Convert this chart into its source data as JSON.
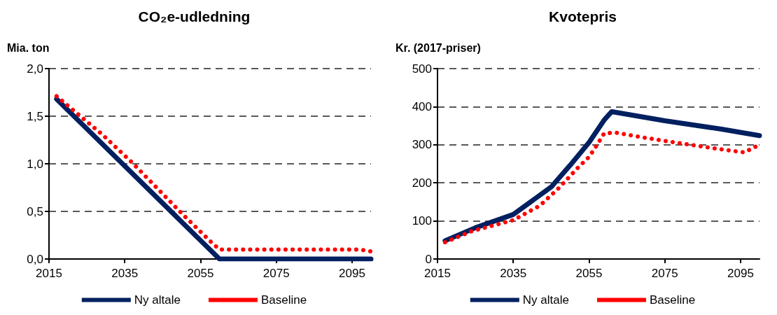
{
  "chart_data": [
    {
      "type": "line",
      "title": "CO₂e-udledning",
      "ylabel": "Mia. ton",
      "xlim": [
        2015,
        2100
      ],
      "xticks": [
        2015,
        2035,
        2055,
        2075,
        2095
      ],
      "ylim": [
        0,
        2
      ],
      "yticks": [
        {
          "value": 0,
          "label": "0,0"
        },
        {
          "value": 0.5,
          "label": "0,5"
        },
        {
          "value": 1,
          "label": "1,0"
        },
        {
          "value": 1.5,
          "label": "1,5"
        },
        {
          "value": 2,
          "label": "2,0"
        }
      ],
      "grid": "y",
      "legend": "bottom",
      "marker": "none",
      "series": [
        {
          "name": "Ny altale",
          "color": "#002060",
          "line_style": "solid",
          "x": [
            2017,
            2060,
            2100
          ],
          "values": [
            1.68,
            0,
            0
          ]
        },
        {
          "name": "Baseline",
          "color": "#ff0000",
          "line_style": "dotted",
          "x": [
            2017,
            2029,
            2037,
            2050,
            2058,
            2060,
            2097,
            2100
          ],
          "values": [
            1.71,
            1.31,
            1.01,
            0.48,
            0.17,
            0.1,
            0.1,
            0.08
          ]
        }
      ]
    },
    {
      "type": "line",
      "title": "Kvotepris",
      "ylabel": "Kr. (2017-priser)",
      "xlim": [
        2015,
        2100
      ],
      "xticks": [
        2015,
        2035,
        2055,
        2075,
        2095
      ],
      "ylim": [
        0,
        500
      ],
      "yticks": [
        0,
        100,
        200,
        300,
        400,
        500
      ],
      "grid": "y",
      "legend": "bottom",
      "marker": "none",
      "series": [
        {
          "name": "Ny altale",
          "color": "#002060",
          "line_style": "solid",
          "x": [
            2017,
            2025,
            2035,
            2045,
            2050,
            2055,
            2059,
            2061,
            2075,
            2090,
            2100
          ],
          "values": [
            48,
            82,
            117,
            189,
            246,
            306,
            365,
            387,
            363,
            341,
            324
          ]
        },
        {
          "name": "Baseline",
          "color": "#ff0000",
          "line_style": "dotted",
          "x": [
            2017,
            2024,
            2035,
            2042,
            2047,
            2052,
            2055,
            2057,
            2059,
            2062,
            2070,
            2077,
            2085,
            2092,
            2096,
            2099
          ],
          "values": [
            44,
            73,
            102,
            140,
            186,
            239,
            268,
            298,
            330,
            332,
            318,
            307,
            295,
            285,
            280,
            295
          ]
        }
      ]
    }
  ]
}
